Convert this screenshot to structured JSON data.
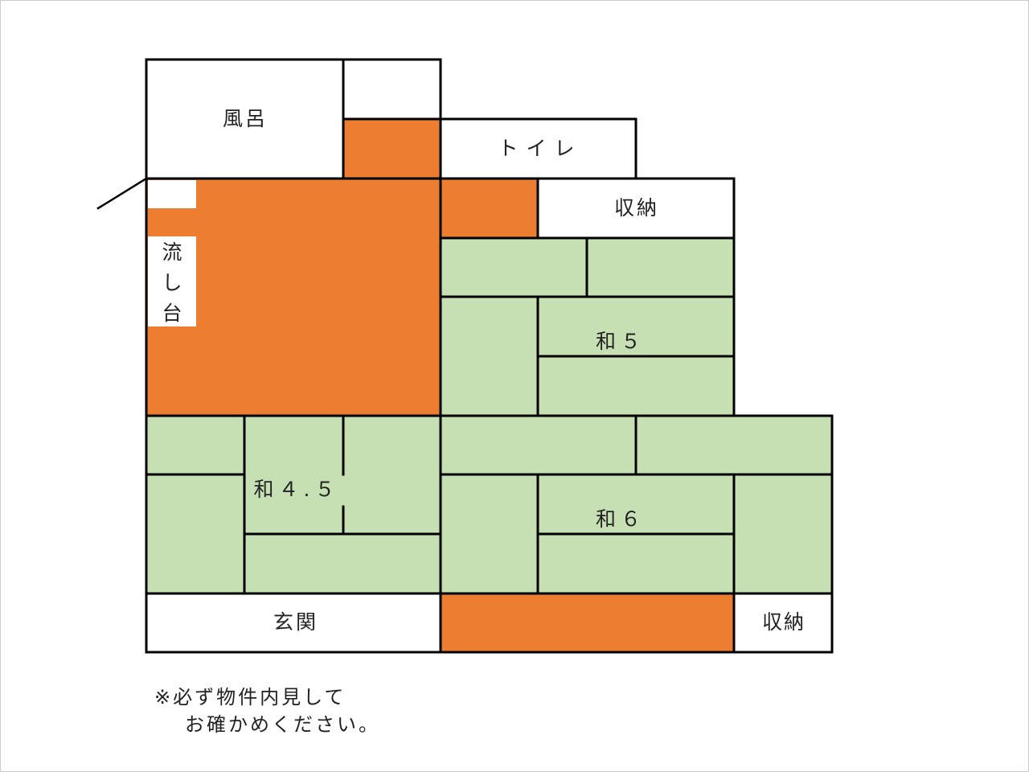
{
  "colors": {
    "wood_floor": "#ed7d31",
    "tatami": "#c6e0b4",
    "wall": "#000000",
    "background": "#ffffff"
  },
  "rooms": {
    "bath": "風呂",
    "toilet": "トイレ",
    "storage_top": "収納",
    "sink_1": "流",
    "sink_2": "し",
    "sink_3": "台",
    "washitsu_5": "和５",
    "washitsu_45": "和４.５",
    "washitsu_6": "和６",
    "entrance": "玄関",
    "storage_bottom": "収納"
  },
  "notice": {
    "line1": "※必ず物件内見して",
    "line2": "お確かめください。"
  }
}
